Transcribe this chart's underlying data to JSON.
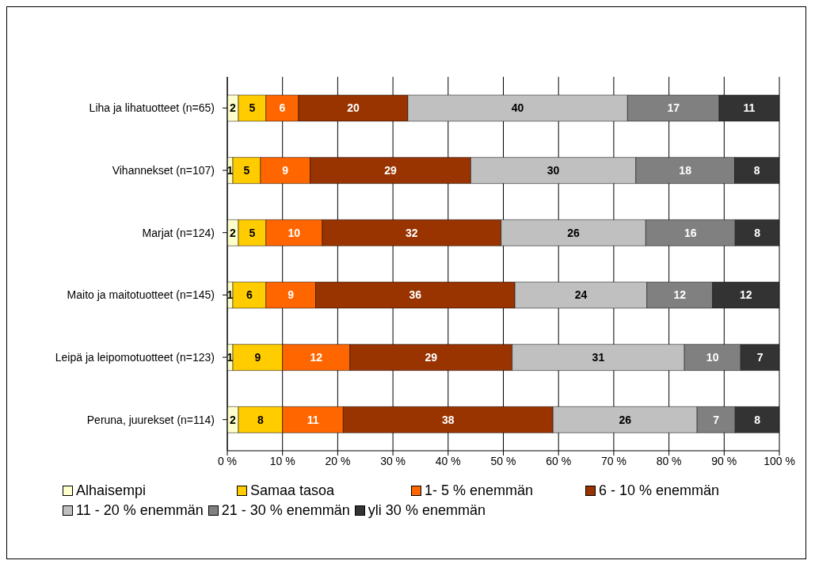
{
  "chart_data": {
    "type": "bar",
    "orientation": "horizontal",
    "stacked": true,
    "categories": [
      "Liha ja lihatuotteet (n=65)",
      "Vihannekset (n=107)",
      "Marjat (n=124)",
      "Maito ja maitotuotteet (n=145)",
      "Leipä ja leipomotuotteet (n=123)",
      "Peruna, juurekset (n=114)"
    ],
    "series": [
      {
        "name": "Alhaisempi",
        "color": "#ffffcc",
        "values": [
          2,
          1,
          2,
          1,
          1,
          2
        ],
        "value_labels": [
          "2",
          "1",
          "2",
          "1",
          "1",
          "2"
        ]
      },
      {
        "name": "Samaa tasoa",
        "color": "#ffcc00",
        "values": [
          5,
          5,
          5,
          6,
          9,
          8
        ],
        "value_labels": [
          "5",
          "5",
          "5",
          "6",
          "9",
          "8"
        ]
      },
      {
        "name": "1- 5 % enemmän",
        "color": "#ff6600",
        "values": [
          5.9,
          9,
          10.2,
          9,
          12.2,
          11
        ],
        "value_labels": [
          "6",
          "9",
          "10",
          "9",
          "12",
          "11"
        ]
      },
      {
        "name": "6 - 10 % enemmän",
        "color": "#993300",
        "values": [
          19.8,
          29.1,
          32.4,
          36.1,
          29.4,
          38
        ],
        "value_labels": [
          "20",
          "29",
          "32",
          "36",
          "29",
          "38"
        ]
      },
      {
        "name": "11 - 20 % enemmän",
        "color": "#c0c0c0",
        "values": [
          39.8,
          29.9,
          26.2,
          23.9,
          31.2,
          26.1
        ],
        "value_labels": [
          "40",
          "30",
          "26",
          "24",
          "31",
          "26"
        ]
      },
      {
        "name": "21 - 30 % enemmän",
        "color": "#808080",
        "values": [
          16.6,
          17.9,
          16.2,
          11.9,
          10.2,
          6.9
        ],
        "value_labels": [
          "17",
          "18",
          "16",
          "12",
          "10",
          "7"
        ]
      },
      {
        "name": "yli 30 % enemmän",
        "color": "#333333",
        "values": [
          10.9,
          8.1,
          8,
          12.1,
          7,
          8
        ],
        "value_labels": [
          "11",
          "8",
          "8",
          "12",
          "7",
          "8"
        ]
      }
    ],
    "xlim": [
      0,
      100
    ],
    "xticks": [
      {
        "value": 0,
        "label": "0 %"
      },
      {
        "value": 10,
        "label": "10 %"
      },
      {
        "value": 20,
        "label": "20 %"
      },
      {
        "value": 30,
        "label": "30 %"
      },
      {
        "value": 40,
        "label": "40 %"
      },
      {
        "value": 50,
        "label": "50 %"
      },
      {
        "value": 60,
        "label": "60 %"
      },
      {
        "value": 70,
        "label": "70 %"
      },
      {
        "value": 80,
        "label": "80 %"
      },
      {
        "value": 90,
        "label": "90 %"
      },
      {
        "value": 100,
        "label": "100 %"
      }
    ],
    "grid": "x",
    "legend": "bottom"
  }
}
